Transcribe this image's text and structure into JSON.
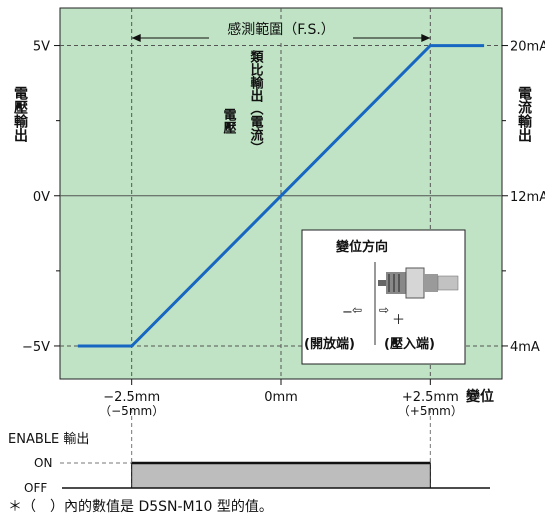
{
  "chart_data": {
    "type": "line",
    "range_label": "感測範圍（F.S.）",
    "left_axis_label": "電壓輸出",
    "right_axis_label": "電流輸出",
    "x_axis_label": "變位",
    "inner_label_voltage": "電壓",
    "inner_label_analog": "類比輸出（電流）",
    "x_ticks": [
      {
        "value": -2.5,
        "label": "−2.5mm",
        "sublabel": "（−5mm）"
      },
      {
        "value": 0,
        "label": "0mm",
        "sublabel": ""
      },
      {
        "value": 2.5,
        "label": "+2.5mm",
        "sublabel": "（+5mm）"
      }
    ],
    "y_left_ticks": [
      {
        "value": 5,
        "label": "5V"
      },
      {
        "value": 0,
        "label": "0V"
      },
      {
        "value": -5,
        "label": "−5V"
      }
    ],
    "y_right_ticks": [
      {
        "value": 5,
        "label": "20mA"
      },
      {
        "value": 0,
        "label": "12mA"
      },
      {
        "value": -5,
        "label": "4mA"
      }
    ],
    "series": [
      {
        "x": [
          -3.4,
          -2.5,
          2.5,
          3.4
        ],
        "y": [
          -5,
          -5,
          5,
          5
        ]
      }
    ],
    "xlim": [
      -3.7,
      3.7
    ],
    "ylim": [
      -6.1,
      6.25
    ],
    "grid": true,
    "inset": {
      "title": "變位方向",
      "minus": "−",
      "plus": "＋",
      "left_label": "(開放端)",
      "right_label": "(壓入端)"
    },
    "enable": {
      "label": "ENABLE 輸出",
      "on": "ON",
      "off": "OFF",
      "on_from": -2.5,
      "on_to": 2.5
    }
  },
  "footnote": "＊（　）內的數值是 D5SN-M10 型的值。",
  "colors": {
    "plot_bg": "#bfe3c4",
    "line": "#1767c2",
    "enable_fill": "#bdbdbd"
  }
}
